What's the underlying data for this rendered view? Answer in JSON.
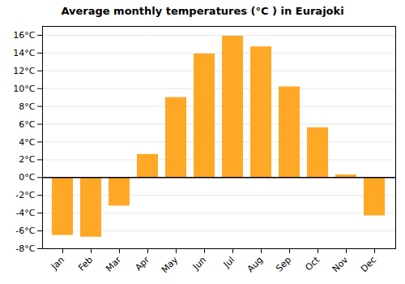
{
  "chart_data": {
    "type": "bar",
    "title": "Average monthly temperatures (°C ) in Eurajoki",
    "categories": [
      "Jan",
      "Feb",
      "Mar",
      "Apr",
      "May",
      "Jun",
      "Jul",
      "Aug",
      "Sep",
      "Oct",
      "Nov",
      "Dec"
    ],
    "values": [
      -6.5,
      -6.7,
      -3.2,
      2.6,
      9.0,
      13.9,
      15.9,
      14.7,
      10.2,
      5.6,
      0.3,
      -4.3
    ],
    "color": "#FFA826",
    "ylim": [
      -8,
      17
    ],
    "yticks": [
      {
        "value": -8,
        "label": "-8°C"
      },
      {
        "value": -6,
        "label": "-6°C"
      },
      {
        "value": -4,
        "label": "-4°C"
      },
      {
        "value": -2,
        "label": "-2°C"
      },
      {
        "value": 0,
        "label": "0°C"
      },
      {
        "value": 2,
        "label": "2°C"
      },
      {
        "value": 4,
        "label": "4°C"
      },
      {
        "value": 6,
        "label": "6°C"
      },
      {
        "value": 8,
        "label": "8°C"
      },
      {
        "value": 10,
        "label": "10°C"
      },
      {
        "value": 12,
        "label": "12°C"
      },
      {
        "value": 14,
        "label": "14°C"
      },
      {
        "value": 16,
        "label": "16°C"
      }
    ],
    "grid": true
  }
}
